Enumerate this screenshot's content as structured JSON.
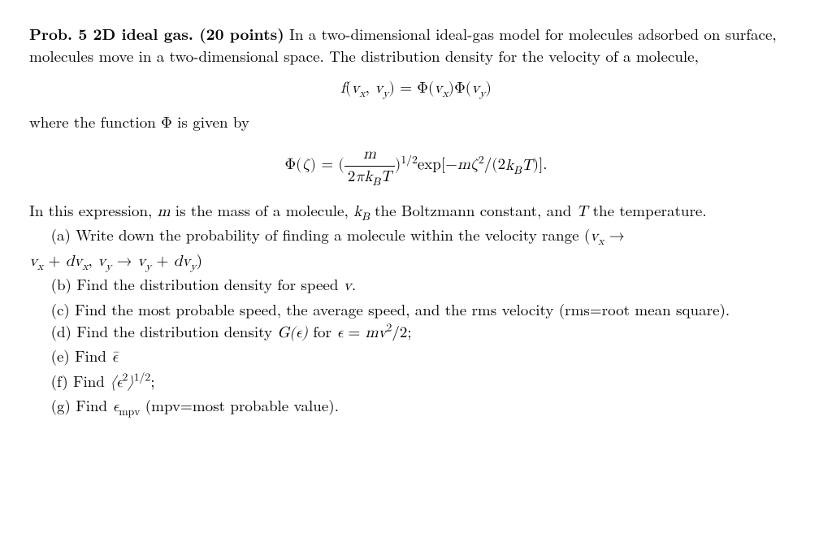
{
  "title_prefix": "Prob. 5 2D ideal gas. (20 points)",
  "intro_1": " In a two-dimensional ideal-gas model for molecules adsorbed on surface, molecules move in a two-dimensional space. The distribution density for the velocity of a molecule,",
  "eq1": "f(v_x, v_y) = Φ(v_x)Φ(v_y)",
  "intro_2": "where the function Φ is given by",
  "eq2": "Φ(ζ) = ( m / (2πk_B T) )^{1/2} exp[−mζ² / (2k_B T)].",
  "intro_3a": "In this expression, ",
  "intro_3b": " is the mass of a molecule, ",
  "intro_3c": " the Boltzmann constant, and ",
  "intro_3d": " the temperature.",
  "a_1": "(a) Write down the probability of finding a molecule within the velocity range (",
  "a_2": ")",
  "b": "(b) Find the distribution density for speed ",
  "b_end": ".",
  "c": "(c) Find the most probable speed, the average speed, and the rms velocity (rms=root mean square).",
  "d_1": "(d) Find the distribution density ",
  "d_2": " for ",
  "d_3": ";",
  "e_1": "(e) Find ",
  "f_1": "(f) Find ",
  "f_2": ";",
  "g_1": "(g) Find ",
  "g_2": " (mpv=most probable value).",
  "symbols": {
    "m": "m",
    "kB": "k",
    "kB_sub": "B",
    "T": "T",
    "v": "v",
    "vx": "v",
    "vx_sub": "x",
    "vy": "v",
    "vy_sub": "y",
    "dvx": "dv",
    "dvy": "dv",
    "Geps": "G(ϵ)",
    "eps_eq": "ϵ = mv²/2",
    "eps_bar": "ϵ̄",
    "eps2_half": "⟨ϵ²⟩",
    "half": "1/2",
    "eps_mpv": "ϵ",
    "mpv_sub": "mpv"
  }
}
